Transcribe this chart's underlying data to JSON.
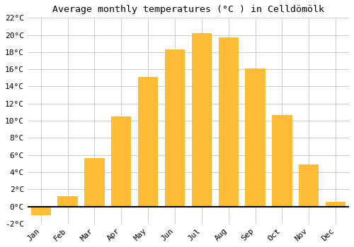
{
  "title": "Average monthly temperatures (°C ) in Celldömölk",
  "months": [
    "Jan",
    "Feb",
    "Mar",
    "Apr",
    "May",
    "Jun",
    "Jul",
    "Aug",
    "Sep",
    "Oct",
    "Nov",
    "Dec"
  ],
  "temperatures": [
    -1.0,
    1.2,
    5.6,
    10.5,
    15.1,
    18.3,
    20.2,
    19.7,
    16.1,
    10.7,
    4.9,
    0.5
  ],
  "bar_color": "#FFBB33",
  "ylim": [
    -2,
    22
  ],
  "yticks": [
    -2,
    0,
    2,
    4,
    6,
    8,
    10,
    12,
    14,
    16,
    18,
    20,
    22
  ],
  "background_color": "#ffffff",
  "grid_color": "#cccccc",
  "title_fontsize": 9.5,
  "tick_fontsize": 8,
  "bar_width": 0.75
}
